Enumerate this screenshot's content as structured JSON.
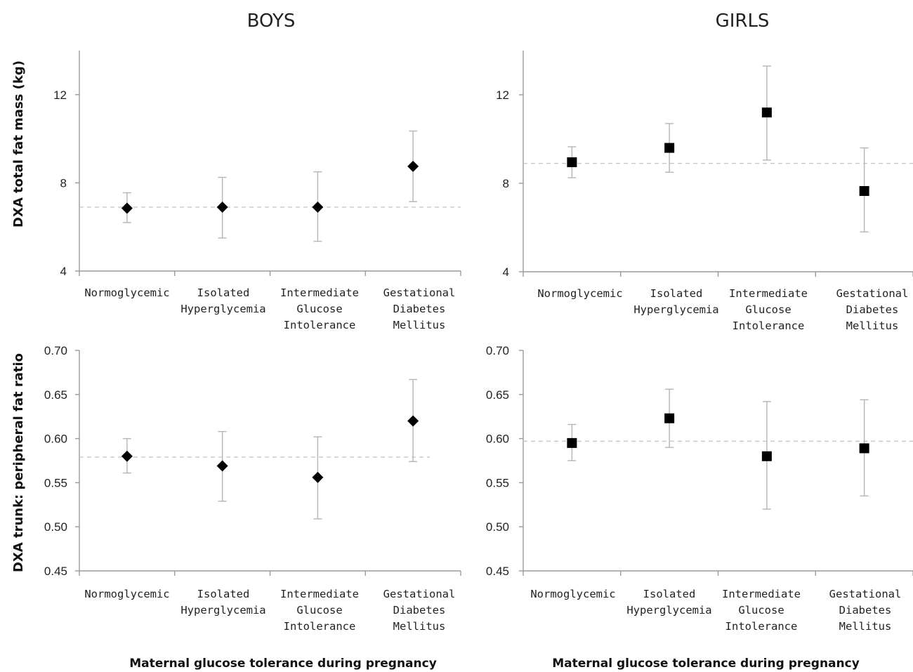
{
  "column_titles": [
    "BOYS",
    "GIRLS"
  ],
  "row_ylabels": [
    "DXA total fat mass (kg)",
    "DXA trunk: peripheral fat ratio"
  ],
  "shared_xlabel": "Maternal glucose tolerance during pregnancy",
  "colors": {
    "marker": "#000000",
    "error_bar": "#b5b5b5",
    "reference_line": "#c8c8c8",
    "axis": "#9a9a9a"
  },
  "chart_data": [
    {
      "type": "scatter",
      "panel": "boys-fat-mass",
      "title": "BOYS",
      "ylabel": "DXA total fat mass (kg)",
      "xlabel": "Maternal glucose tolerance during pregnancy",
      "marker": "diamond",
      "categories": [
        [
          "Normoglycemic"
        ],
        [
          "Isolated",
          "Hyperglycemia"
        ],
        [
          "Intermediate",
          "Glucose",
          "Intolerance"
        ],
        [
          "Gestational",
          "Diabetes",
          "Mellitus"
        ]
      ],
      "ylim": [
        4,
        14
      ],
      "yticks": [
        4,
        8,
        12
      ],
      "ytick_labels": [
        "4",
        "8",
        "12"
      ],
      "reference": 6.9,
      "points": [
        {
          "category": "Normoglycemic",
          "value": 6.85,
          "lower": 6.2,
          "upper": 7.55
        },
        {
          "category": "Isolated Hyperglycemia",
          "value": 6.9,
          "lower": 5.5,
          "upper": 8.25
        },
        {
          "category": "Intermediate Glucose Intolerance",
          "value": 6.9,
          "lower": 5.35,
          "upper": 8.5
        },
        {
          "category": "Gestational Diabetes Mellitus",
          "value": 8.75,
          "lower": 7.15,
          "upper": 10.35
        }
      ]
    },
    {
      "type": "scatter",
      "panel": "girls-fat-mass",
      "title": "GIRLS",
      "ylabel": "",
      "xlabel": "Maternal glucose tolerance during pregnancy",
      "marker": "square",
      "categories": [
        [
          "Normoglycemic"
        ],
        [
          "Isolated",
          "Hyperglycemia"
        ],
        [
          "Intermediate",
          "Glucose",
          "Intolerance"
        ],
        [
          "Gestational",
          "Diabetes",
          "Mellitus"
        ]
      ],
      "ylim": [
        4,
        14
      ],
      "yticks": [
        4,
        8,
        12
      ],
      "ytick_labels": [
        "4",
        "8",
        "12"
      ],
      "reference": 8.9,
      "points": [
        {
          "category": "Normoglycemic",
          "value": 8.95,
          "lower": 8.25,
          "upper": 9.65
        },
        {
          "category": "Isolated Hyperglycemia",
          "value": 9.6,
          "lower": 8.5,
          "upper": 10.7
        },
        {
          "category": "Intermediate Glucose Intolerance",
          "value": 11.2,
          "lower": 9.05,
          "upper": 13.3
        },
        {
          "category": "Gestational Diabetes Mellitus",
          "value": 7.65,
          "lower": 5.8,
          "upper": 9.6
        }
      ]
    },
    {
      "type": "scatter",
      "panel": "boys-trunk-ratio",
      "title": "",
      "ylabel": "DXA trunk: peripheral fat ratio",
      "xlabel": "Maternal glucose tolerance during pregnancy",
      "marker": "diamond",
      "categories": [
        [
          "Normoglycemic"
        ],
        [
          "Isolated",
          "Hyperglycemia"
        ],
        [
          "Intermediate",
          "Glucose",
          "Intolerance"
        ],
        [
          "Gestational",
          "Diabetes",
          "Mellitus"
        ]
      ],
      "ylim": [
        0.45,
        0.7
      ],
      "yticks": [
        0.45,
        0.5,
        0.55,
        0.6,
        0.65,
        0.7
      ],
      "ytick_labels": [
        "0.45",
        "0.50",
        "0.55",
        "0.60",
        "0.65",
        "0.70"
      ],
      "reference": 0.579,
      "points": [
        {
          "category": "Normoglycemic",
          "value": 0.58,
          "lower": 0.561,
          "upper": 0.6
        },
        {
          "category": "Isolated Hyperglycemia",
          "value": 0.569,
          "lower": 0.529,
          "upper": 0.608
        },
        {
          "category": "Intermediate Glucose Intolerance",
          "value": 0.556,
          "lower": 0.509,
          "upper": 0.602
        },
        {
          "category": "Gestational Diabetes Mellitus",
          "value": 0.62,
          "lower": 0.574,
          "upper": 0.667
        }
      ]
    },
    {
      "type": "scatter",
      "panel": "girls-trunk-ratio",
      "title": "",
      "ylabel": "",
      "xlabel": "Maternal glucose tolerance during pregnancy",
      "marker": "square",
      "categories": [
        [
          "Normoglycemic"
        ],
        [
          "Isolated",
          "Hyperglycemia"
        ],
        [
          "Intermediate",
          "Glucose",
          "Intolerance"
        ],
        [
          "Gestational",
          "Diabetes",
          "Mellitus"
        ]
      ],
      "ylim": [
        0.45,
        0.7
      ],
      "yticks": [
        0.45,
        0.5,
        0.55,
        0.6,
        0.65,
        0.7
      ],
      "ytick_labels": [
        "0.45",
        "0.50",
        "0.55",
        "0.60",
        "0.65",
        "0.70"
      ],
      "reference": 0.597,
      "points": [
        {
          "category": "Normoglycemic",
          "value": 0.595,
          "lower": 0.575,
          "upper": 0.616
        },
        {
          "category": "Isolated Hyperglycemia",
          "value": 0.623,
          "lower": 0.59,
          "upper": 0.656
        },
        {
          "category": "Intermediate Glucose Intolerance",
          "value": 0.58,
          "lower": 0.52,
          "upper": 0.642
        },
        {
          "category": "Gestational Diabetes Mellitus",
          "value": 0.589,
          "lower": 0.535,
          "upper": 0.644
        }
      ]
    }
  ]
}
